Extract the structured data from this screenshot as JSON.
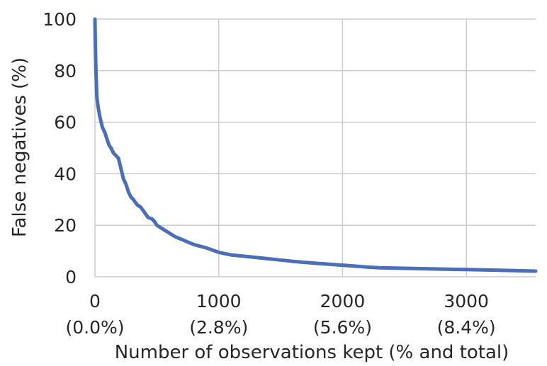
{
  "chart_data": {
    "type": "line",
    "title": "",
    "xlabel": "Number of observations kept (% and total)",
    "ylabel": "False negatives (%)",
    "xlim": [
      0,
      3560
    ],
    "ylim": [
      0,
      100
    ],
    "grid": true,
    "x_ticks": [
      {
        "value": 0,
        "label": "0",
        "sublabel": "(0.0%)"
      },
      {
        "value": 1000,
        "label": "1000",
        "sublabel": "(2.8%)"
      },
      {
        "value": 2000,
        "label": "2000",
        "sublabel": "(5.6%)"
      },
      {
        "value": 3000,
        "label": "3000",
        "sublabel": "(8.4%)"
      }
    ],
    "y_ticks": [
      {
        "value": 0,
        "label": "0"
      },
      {
        "value": 20,
        "label": "20"
      },
      {
        "value": 40,
        "label": "40"
      },
      {
        "value": 60,
        "label": "60"
      },
      {
        "value": 80,
        "label": "80"
      },
      {
        "value": 100,
        "label": "100"
      }
    ],
    "series": [
      {
        "color": "#4a6eb8",
        "x": [
          0,
          3,
          8,
          15,
          25,
          40,
          60,
          80,
          100,
          115,
          130,
          150,
          170,
          190,
          200,
          215,
          230,
          250,
          270,
          290,
          310,
          340,
          370,
          400,
          430,
          460,
          480,
          500,
          550,
          600,
          650,
          700,
          800,
          900,
          1000,
          1100,
          1200,
          1400,
          1600,
          1800,
          2000,
          2200,
          2300,
          2500,
          2800,
          3000,
          3300,
          3560
        ],
        "y": [
          100,
          90,
          80,
          70,
          66,
          62,
          58,
          56,
          53,
          51,
          50,
          48,
          47,
          46,
          44,
          41,
          38,
          36,
          33,
          31,
          30,
          28,
          27,
          25,
          23,
          22.5,
          21.5,
          20,
          18.5,
          17,
          15.5,
          14.5,
          12.5,
          11.2,
          9.5,
          8.5,
          8,
          7,
          6,
          5.2,
          4.5,
          3.8,
          3.5,
          3.3,
          3,
          2.8,
          2.5,
          2.2
        ]
      }
    ]
  }
}
